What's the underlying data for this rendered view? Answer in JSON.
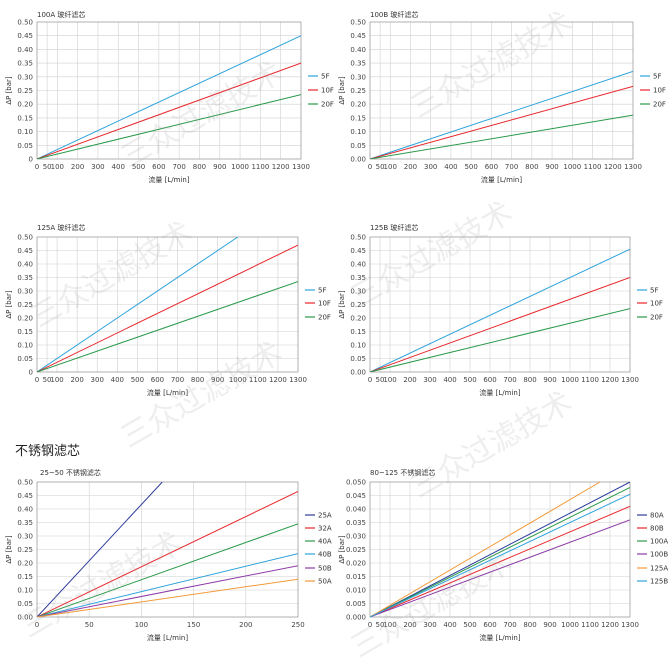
{
  "section_title": "不锈钢滤芯",
  "watermark": "三众过滤技术",
  "chart_data": [
    {
      "type": "line",
      "title": "100A 玻纤滤芯",
      "xlabel": "流量 [L/min]",
      "ylabel": "ΔP [bar]",
      "xlim": [
        0,
        1300
      ],
      "ylim": [
        0,
        0.5
      ],
      "xticks": [
        0,
        50,
        100,
        200,
        300,
        400,
        500,
        600,
        700,
        800,
        900,
        1000,
        1100,
        1200,
        1300
      ],
      "yticks": [
        0,
        0.05,
        0.1,
        0.15,
        0.2,
        0.25,
        0.3,
        0.35,
        0.4,
        0.45,
        0.5
      ],
      "ytick_labels": [
        "0",
        "0.05",
        "0.10",
        "0.15",
        "0.20",
        "0.25",
        "0.30",
        "0.35",
        "0.40",
        "0.45",
        "0.50"
      ],
      "grid": true,
      "legend": "right",
      "series": [
        {
          "name": "5F",
          "color": "#2ea3dc",
          "x": [
            0,
            1300
          ],
          "y": [
            0,
            0.45
          ]
        },
        {
          "name": "10F",
          "color": "#e8262b",
          "x": [
            0,
            1300
          ],
          "y": [
            0,
            0.35
          ]
        },
        {
          "name": "20F",
          "color": "#2a9a4a",
          "x": [
            0,
            1300
          ],
          "y": [
            0,
            0.235
          ]
        }
      ]
    },
    {
      "type": "line",
      "title": "100B 玻纤滤芯",
      "xlabel": "流量 [L/min]",
      "ylabel": "ΔP [bar]",
      "xlim": [
        0,
        1300
      ],
      "ylim": [
        0,
        0.5
      ],
      "xticks": [
        0,
        50,
        100,
        200,
        300,
        400,
        500,
        600,
        700,
        800,
        900,
        1000,
        1100,
        1200,
        1300
      ],
      "yticks": [
        0,
        0.05,
        0.1,
        0.15,
        0.2,
        0.25,
        0.3,
        0.35,
        0.4,
        0.45,
        0.5
      ],
      "ytick_labels": [
        "0.00",
        "0.05",
        "0.10",
        "0.15",
        "0.20",
        "0.25",
        "0.30",
        "0.35",
        "0.40",
        "0.45",
        "0.50"
      ],
      "grid": true,
      "legend": "right",
      "series": [
        {
          "name": "5F",
          "color": "#2ea3dc",
          "x": [
            0,
            1300
          ],
          "y": [
            0,
            0.32
          ]
        },
        {
          "name": "10F",
          "color": "#e8262b",
          "x": [
            0,
            1300
          ],
          "y": [
            0,
            0.265
          ]
        },
        {
          "name": "20F",
          "color": "#2a9a4a",
          "x": [
            0,
            1300
          ],
          "y": [
            0,
            0.16
          ]
        }
      ]
    },
    {
      "type": "line",
      "title": "125A 玻纤滤芯",
      "xlabel": "流量 [L/min]",
      "ylabel": "ΔP [bar]",
      "xlim": [
        0,
        1300
      ],
      "ylim": [
        0,
        0.5
      ],
      "xticks": [
        0,
        50,
        100,
        200,
        300,
        400,
        500,
        600,
        700,
        800,
        900,
        1000,
        1100,
        1200,
        1300
      ],
      "yticks": [
        0,
        0.05,
        0.1,
        0.15,
        0.2,
        0.25,
        0.3,
        0.35,
        0.4,
        0.45,
        0.5
      ],
      "ytick_labels": [
        "0",
        "0.05",
        "0.10",
        "0.15",
        "0.20",
        "0.25",
        "0.30",
        "0.35",
        "0.40",
        "0.45",
        "0.50"
      ],
      "grid": true,
      "legend": "right",
      "series": [
        {
          "name": "5F",
          "color": "#2ea3dc",
          "x": [
            0,
            1000
          ],
          "y": [
            0,
            0.5
          ]
        },
        {
          "name": "10F",
          "color": "#e8262b",
          "x": [
            0,
            1300
          ],
          "y": [
            0,
            0.47
          ]
        },
        {
          "name": "20F",
          "color": "#2a9a4a",
          "x": [
            0,
            1300
          ],
          "y": [
            0,
            0.335
          ]
        }
      ]
    },
    {
      "type": "line",
      "title": "125B 玻纤滤芯",
      "xlabel": "流量 [L/min]",
      "ylabel": "ΔP [bar]",
      "xlim": [
        0,
        1300
      ],
      "ylim": [
        0,
        0.5
      ],
      "xticks": [
        0,
        50,
        100,
        200,
        300,
        400,
        500,
        600,
        700,
        800,
        900,
        1000,
        1100,
        1200,
        1300
      ],
      "yticks": [
        0,
        0.05,
        0.1,
        0.15,
        0.2,
        0.25,
        0.3,
        0.35,
        0.4,
        0.45,
        0.5
      ],
      "ytick_labels": [
        "0.00",
        "0.05",
        "0.10",
        "0.15",
        "0.20",
        "0.25",
        "0.30",
        "0.35",
        "0.40",
        "0.45",
        "0.50"
      ],
      "grid": true,
      "legend": "right",
      "series": [
        {
          "name": "5F",
          "color": "#2ea3dc",
          "x": [
            0,
            1300
          ],
          "y": [
            0,
            0.455
          ]
        },
        {
          "name": "10F",
          "color": "#e8262b",
          "x": [
            0,
            1300
          ],
          "y": [
            0,
            0.35
          ]
        },
        {
          "name": "20F",
          "color": "#2a9a4a",
          "x": [
            0,
            1300
          ],
          "y": [
            0,
            0.235
          ]
        }
      ]
    },
    {
      "type": "line",
      "title": "25~50 不锈钢滤芯",
      "xlabel": "流量 [L/min]",
      "ylabel": "ΔP [bar]",
      "xlim": [
        0,
        250
      ],
      "ylim": [
        0,
        0.5
      ],
      "xticks": [
        0,
        50,
        100,
        150,
        200,
        250
      ],
      "yticks": [
        0,
        0.05,
        0.1,
        0.15,
        0.2,
        0.25,
        0.3,
        0.35,
        0.4,
        0.45,
        0.5
      ],
      "ytick_labels": [
        "0.00",
        "0.05",
        "0.10",
        "0.15",
        "0.20",
        "0.25",
        "0.30",
        "0.35",
        "0.40",
        "0.45",
        "0.50"
      ],
      "grid": true,
      "legend": "right",
      "series": [
        {
          "name": "25A",
          "color": "#2b3a9a",
          "x": [
            0,
            120
          ],
          "y": [
            0,
            0.5
          ]
        },
        {
          "name": "32A",
          "color": "#e8262b",
          "x": [
            0,
            250
          ],
          "y": [
            0,
            0.465
          ]
        },
        {
          "name": "40A",
          "color": "#2a9a4a",
          "x": [
            0,
            250
          ],
          "y": [
            0,
            0.345
          ]
        },
        {
          "name": "40B",
          "color": "#2ea3dc",
          "x": [
            0,
            250
          ],
          "y": [
            0,
            0.235
          ]
        },
        {
          "name": "50B",
          "color": "#8e3aa8",
          "x": [
            0,
            250
          ],
          "y": [
            0,
            0.19
          ]
        },
        {
          "name": "50A",
          "color": "#f29a38",
          "x": [
            0,
            250
          ],
          "y": [
            0,
            0.14
          ]
        }
      ]
    },
    {
      "type": "line",
      "title": "80~125 不锈钢滤芯",
      "xlabel": "流量 [L/min]",
      "ylabel": "ΔP [bar]",
      "xlim": [
        0,
        1300
      ],
      "ylim": [
        0,
        0.05
      ],
      "xticks": [
        0,
        50,
        100,
        200,
        300,
        400,
        500,
        600,
        700,
        800,
        900,
        1000,
        1100,
        1200,
        1300
      ],
      "yticks": [
        0,
        0.005,
        0.01,
        0.015,
        0.02,
        0.025,
        0.03,
        0.035,
        0.04,
        0.045,
        0.05
      ],
      "ytick_labels": [
        "0.000",
        "0.005",
        "0.010",
        "0.015",
        "0.020",
        "0.025",
        "0.030",
        "0.035",
        "0.040",
        "0.045",
        "0.050"
      ],
      "grid": true,
      "legend": "right",
      "series": [
        {
          "name": "80A",
          "color": "#2b3a9a",
          "x": [
            0,
            1300
          ],
          "y": [
            0,
            0.05
          ]
        },
        {
          "name": "80B",
          "color": "#e8262b",
          "x": [
            0,
            1300
          ],
          "y": [
            0,
            0.041
          ]
        },
        {
          "name": "100A",
          "color": "#2a9a4a",
          "x": [
            0,
            1300
          ],
          "y": [
            0,
            0.048
          ]
        },
        {
          "name": "100B",
          "color": "#8e3aa8",
          "x": [
            0,
            1300
          ],
          "y": [
            0,
            0.036
          ]
        },
        {
          "name": "125A",
          "color": "#f29a38",
          "x": [
            0,
            1150
          ],
          "y": [
            0,
            0.05
          ]
        },
        {
          "name": "125B",
          "color": "#2ea3dc",
          "x": [
            0,
            1300
          ],
          "y": [
            0,
            0.0455
          ]
        }
      ]
    }
  ]
}
